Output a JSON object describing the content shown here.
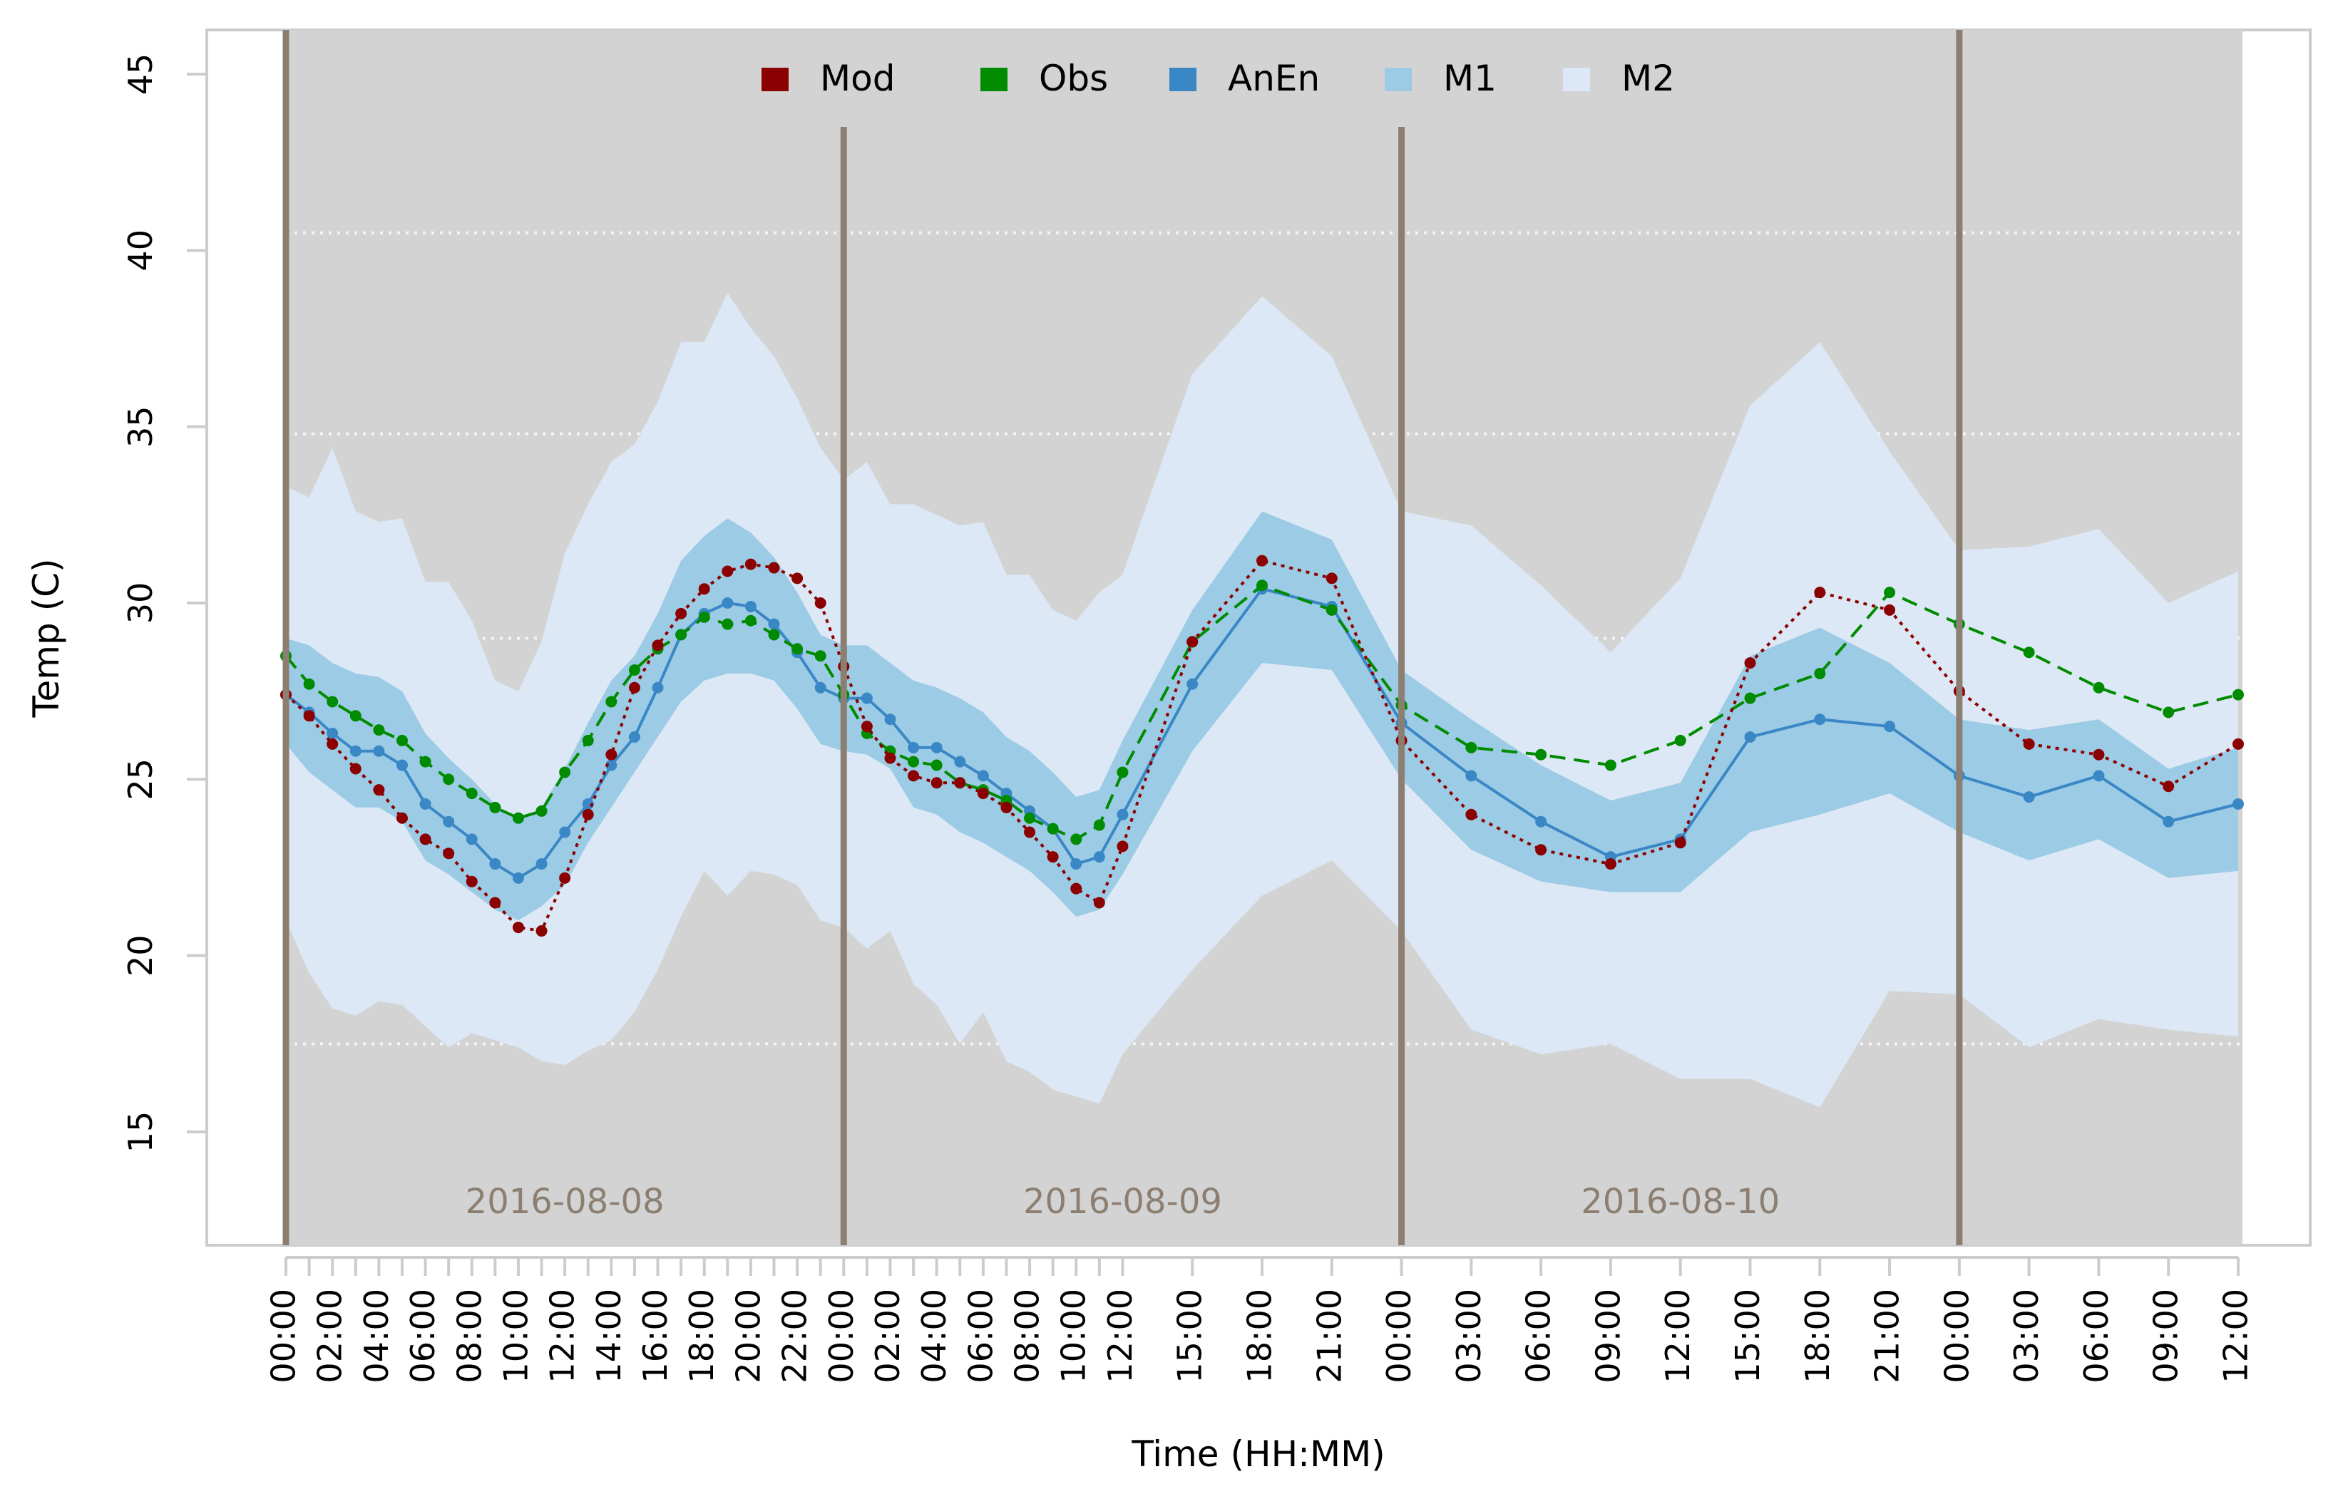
{
  "chart_data": {
    "type": "line",
    "ylabel": "Temp (C)",
    "xlabel": "Time (HH:MM)",
    "ylim": [
      12,
      46
    ],
    "yticks": [
      "15",
      "20",
      "25",
      "30",
      "35",
      "40",
      "45"
    ],
    "yticks_values": [
      15,
      20,
      25,
      30,
      35,
      40,
      45
    ],
    "gridlines_y": [
      17.5,
      29,
      34.8,
      40.5
    ],
    "x_hours": [
      0,
      1,
      2,
      3,
      4,
      5,
      6,
      7,
      8,
      9,
      10,
      11,
      12,
      13,
      14,
      15,
      16,
      17,
      18,
      19,
      20,
      21,
      22,
      23,
      24,
      25,
      26,
      27,
      28,
      29,
      30,
      31,
      32,
      33,
      34,
      35,
      36,
      39,
      42,
      45,
      48,
      51,
      54,
      57,
      60,
      63,
      66,
      69,
      72,
      75,
      78,
      81,
      84
    ],
    "x_tick_labels": [
      {
        "hour": 0,
        "label": "00:00"
      },
      {
        "hour": 2,
        "label": "02:00"
      },
      {
        "hour": 4,
        "label": "04:00"
      },
      {
        "hour": 6,
        "label": "06:00"
      },
      {
        "hour": 8,
        "label": "08:00"
      },
      {
        "hour": 10,
        "label": "10:00"
      },
      {
        "hour": 12,
        "label": "12:00"
      },
      {
        "hour": 14,
        "label": "14:00"
      },
      {
        "hour": 16,
        "label": "16:00"
      },
      {
        "hour": 18,
        "label": "18:00"
      },
      {
        "hour": 20,
        "label": "20:00"
      },
      {
        "hour": 22,
        "label": "22:00"
      },
      {
        "hour": 24,
        "label": "00:00"
      },
      {
        "hour": 26,
        "label": "02:00"
      },
      {
        "hour": 28,
        "label": "04:00"
      },
      {
        "hour": 30,
        "label": "06:00"
      },
      {
        "hour": 32,
        "label": "08:00"
      },
      {
        "hour": 34,
        "label": "10:00"
      },
      {
        "hour": 36,
        "label": "12:00"
      },
      {
        "hour": 39,
        "label": "15:00"
      },
      {
        "hour": 42,
        "label": "18:00"
      },
      {
        "hour": 45,
        "label": "21:00"
      },
      {
        "hour": 48,
        "label": "00:00"
      },
      {
        "hour": 51,
        "label": "03:00"
      },
      {
        "hour": 54,
        "label": "06:00"
      },
      {
        "hour": 57,
        "label": "09:00"
      },
      {
        "hour": 60,
        "label": "12:00"
      },
      {
        "hour": 63,
        "label": "15:00"
      },
      {
        "hour": 66,
        "label": "18:00"
      },
      {
        "hour": 69,
        "label": "21:00"
      },
      {
        "hour": 72,
        "label": "00:00"
      },
      {
        "hour": 75,
        "label": "03:00"
      },
      {
        "hour": 78,
        "label": "06:00"
      },
      {
        "hour": 81,
        "label": "09:00"
      },
      {
        "hour": 84,
        "label": "12:00"
      }
    ],
    "day_separators_hours": [
      0,
      24,
      48,
      72
    ],
    "day_labels": [
      {
        "hour": 12,
        "label": "2016-08-08"
      },
      {
        "hour": 36,
        "label": "2016-08-09"
      },
      {
        "hour": 60,
        "label": "2016-08-10"
      }
    ],
    "legend": [
      {
        "key": "mod",
        "label": "Mod",
        "color": "#8b0000"
      },
      {
        "key": "obs",
        "label": "Obs",
        "color": "#008b00"
      },
      {
        "key": "anen",
        "label": "AnEn",
        "color": "#3a87c6"
      },
      {
        "key": "m1",
        "label": "M1",
        "color": "#9ccbe5"
      },
      {
        "key": "m2",
        "label": "M2",
        "color": "#dce8f5"
      }
    ],
    "series": [
      {
        "name": "Mod",
        "style": "dotted",
        "color": "#8b0000",
        "values": [
          27.4,
          26.8,
          26.0,
          25.3,
          24.7,
          23.9,
          23.3,
          22.9,
          22.1,
          21.5,
          20.8,
          20.7,
          22.2,
          24.0,
          25.7,
          27.6,
          28.8,
          29.7,
          30.4,
          30.9,
          31.1,
          31.0,
          30.7,
          30.0,
          28.2,
          26.5,
          25.6,
          25.1,
          24.9,
          24.9,
          24.6,
          24.2,
          23.5,
          22.8,
          21.9,
          21.5,
          23.1,
          28.9,
          31.2,
          30.7,
          26.1,
          24.0,
          23.0,
          22.6,
          23.2,
          28.3,
          30.3,
          29.8,
          27.5,
          26.0,
          25.7,
          24.8,
          26.0
        ]
      },
      {
        "name": "Obs",
        "style": "dashed",
        "color": "#008b00",
        "values": [
          28.5,
          27.7,
          27.2,
          26.8,
          26.4,
          26.1,
          25.5,
          25.0,
          24.6,
          24.2,
          23.9,
          24.1,
          25.2,
          26.1,
          27.2,
          28.1,
          28.7,
          29.1,
          29.6,
          29.4,
          29.5,
          29.1,
          28.7,
          28.5,
          27.4,
          26.3,
          25.8,
          25.5,
          25.4,
          24.9,
          24.7,
          24.4,
          23.9,
          23.6,
          23.3,
          23.7,
          25.2,
          28.9,
          30.5,
          29.8,
          27.1,
          25.9,
          25.7,
          25.4,
          26.1,
          27.3,
          28.0,
          30.3,
          29.4,
          28.6,
          27.6,
          26.9,
          27.4
        ]
      },
      {
        "name": "AnEn",
        "style": "solid",
        "color": "#3a87c6",
        "values": [
          27.4,
          26.9,
          26.3,
          25.8,
          25.8,
          25.4,
          24.3,
          23.8,
          23.3,
          22.6,
          22.2,
          22.6,
          23.5,
          24.3,
          25.4,
          26.2,
          27.6,
          29.1,
          29.7,
          30.0,
          29.9,
          29.4,
          28.6,
          27.6,
          27.3,
          27.3,
          26.7,
          25.9,
          25.9,
          25.5,
          25.1,
          24.6,
          24.1,
          23.6,
          22.6,
          22.8,
          24.0,
          27.7,
          30.4,
          29.9,
          26.6,
          25.1,
          23.8,
          22.8,
          23.3,
          26.2,
          26.7,
          26.5,
          25.1,
          24.5,
          25.1,
          23.8,
          24.3
        ]
      },
      {
        "name": "M1",
        "style": "band",
        "color": "#9ccbe5",
        "lower": [
          26.0,
          25.2,
          24.7,
          24.2,
          24.2,
          23.8,
          22.7,
          22.3,
          21.8,
          21.3,
          21.0,
          21.4,
          22.0,
          23.2,
          24.2,
          25.2,
          26.2,
          27.2,
          27.8,
          28.0,
          28.0,
          27.8,
          27.0,
          26.0,
          25.8,
          25.7,
          25.3,
          24.2,
          24.0,
          23.5,
          23.2,
          22.8,
          22.4,
          21.8,
          21.1,
          21.3,
          22.3,
          25.8,
          28.3,
          28.1,
          25.0,
          23.0,
          22.1,
          21.8,
          21.8,
          23.5,
          24.0,
          24.6,
          23.5,
          22.7,
          23.3,
          22.2,
          22.4
        ],
        "upper": [
          29.0,
          28.8,
          28.3,
          28.0,
          27.9,
          27.5,
          26.3,
          25.6,
          25.0,
          24.3,
          23.8,
          24.2,
          25.3,
          26.6,
          27.8,
          28.5,
          29.7,
          31.2,
          31.9,
          32.4,
          32.0,
          31.3,
          30.3,
          29.1,
          28.8,
          28.8,
          28.3,
          27.8,
          27.6,
          27.3,
          26.9,
          26.2,
          25.8,
          25.2,
          24.5,
          24.7,
          26.1,
          29.8,
          32.6,
          31.8,
          28.1,
          26.7,
          25.4,
          24.4,
          24.9,
          28.5,
          29.3,
          28.3,
          26.7,
          26.4,
          26.7,
          25.3,
          25.9
        ]
      },
      {
        "name": "M2",
        "style": "band",
        "color": "#dce8f5",
        "lower": [
          21.0,
          19.5,
          18.5,
          18.3,
          18.7,
          18.6,
          18.0,
          17.4,
          17.8,
          17.6,
          17.4,
          17.0,
          16.9,
          17.3,
          17.6,
          18.4,
          19.6,
          21.1,
          22.4,
          21.7,
          22.4,
          22.3,
          22.0,
          21.0,
          20.8,
          20.2,
          20.7,
          19.2,
          18.6,
          17.5,
          18.4,
          17.0,
          16.7,
          16.2,
          16.0,
          15.8,
          17.2,
          19.6,
          21.7,
          22.7,
          20.7,
          17.9,
          17.2,
          17.5,
          16.5,
          16.5,
          15.7,
          19.0,
          18.9,
          17.4,
          18.2,
          17.9,
          17.7
        ],
        "upper": [
          33.3,
          33.0,
          34.4,
          32.6,
          32.3,
          32.4,
          30.6,
          30.6,
          29.5,
          27.8,
          27.5,
          28.9,
          31.4,
          32.8,
          34.0,
          34.5,
          35.7,
          37.4,
          37.4,
          38.8,
          37.8,
          37.0,
          35.8,
          34.4,
          33.5,
          34.0,
          32.8,
          32.8,
          32.5,
          32.2,
          32.3,
          30.8,
          30.8,
          29.8,
          29.5,
          30.3,
          30.8,
          36.5,
          38.7,
          37.0,
          32.6,
          32.2,
          30.5,
          28.6,
          30.7,
          35.6,
          37.4,
          34.3,
          31.5,
          31.6,
          32.1,
          30.0,
          30.9
        ]
      }
    ]
  }
}
